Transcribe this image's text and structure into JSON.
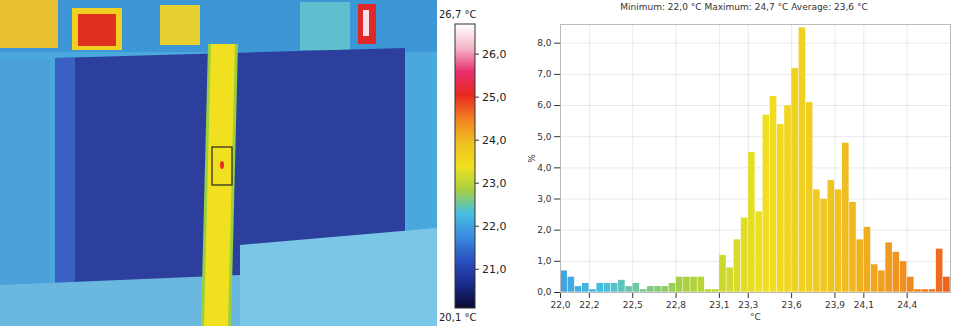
{
  "chart_data": {
    "type": "histogram",
    "title": "Minimum: 22,0 °C Maximum: 24,7 °C Average: 23,6 °C",
    "x_label": "°C",
    "y_label": "%",
    "bins": [
      22,
      22.05,
      22.1,
      22.15,
      22.2,
      22.25,
      22.3,
      22.35,
      22.4,
      22.45,
      22.5,
      22.55,
      22.6,
      22.65,
      22.7,
      22.75,
      22.8,
      22.85,
      22.9,
      22.95,
      23,
      23.05,
      23.1,
      23.15,
      23.2,
      23.25,
      23.3,
      23.35,
      23.4,
      23.45,
      23.5,
      23.55,
      23.6,
      23.65,
      23.7,
      23.75,
      23.8,
      23.85,
      23.9,
      23.95,
      24,
      24.05,
      24.1,
      24.15,
      24.2,
      24.25,
      24.3,
      24.35,
      24.4,
      24.45,
      24.5,
      24.55,
      24.6,
      24.65,
      24.7
    ],
    "counts": [
      0.7,
      0.5,
      0.2,
      0.3,
      0.1,
      0.3,
      0.3,
      0.3,
      0.4,
      0.2,
      0.3,
      0.1,
      0.2,
      0.2,
      0.2,
      0.3,
      0.5,
      0.5,
      0.5,
      0.5,
      0.1,
      0.1,
      1.2,
      0.8,
      1.7,
      2.4,
      4.5,
      2.6,
      5.7,
      6.3,
      5.4,
      6.0,
      7.2,
      8.5,
      6.1,
      3.3,
      3.0,
      3.6,
      3.3,
      4.8,
      2.9,
      1.7,
      2.1,
      0.9,
      0.7,
      1.6,
      1.3,
      1.0,
      0.5,
      0.1,
      0.1,
      0.1,
      1.4,
      0.5
    ],
    "xlim": [
      22.0,
      24.7
    ],
    "xticks": [
      {
        "value": 22.0,
        "label": "22,0"
      },
      {
        "value": 22.2,
        "label": "22,2"
      },
      {
        "value": 22.5,
        "label": "22,5"
      },
      {
        "value": 22.8,
        "label": "22,8"
      },
      {
        "value": 23.1,
        "label": "23,1"
      },
      {
        "value": 23.3,
        "label": "23,3"
      },
      {
        "value": 23.6,
        "label": "23,6"
      },
      {
        "value": 23.9,
        "label": "23,9"
      },
      {
        "value": 24.1,
        "label": "24,1"
      },
      {
        "value": 24.4,
        "label": "24,4"
      }
    ],
    "ylim": [
      0,
      8.6
    ],
    "yticks": [
      {
        "value": 0,
        "label": "0,0"
      },
      {
        "value": 1,
        "label": "1,0"
      },
      {
        "value": 2,
        "label": "2,0"
      },
      {
        "value": 3,
        "label": "3,0"
      },
      {
        "value": 4,
        "label": "4,0"
      },
      {
        "value": 5,
        "label": "5,0"
      },
      {
        "value": 6,
        "label": "6,0"
      },
      {
        "value": 7,
        "label": "7,0"
      },
      {
        "value": 8,
        "label": "8,0"
      }
    ],
    "grid": true,
    "colorbar": {
      "range": [
        20.1,
        26.7
      ],
      "range_labels": [
        "20,1 °C",
        "26,7 °C"
      ],
      "ticks": [
        {
          "value": 21,
          "label": "21,0"
        },
        {
          "value": 22,
          "label": "22,0"
        },
        {
          "value": 23,
          "label": "23,0"
        },
        {
          "value": 24,
          "label": "24,0"
        },
        {
          "value": 25,
          "label": "25,0"
        },
        {
          "value": 26,
          "label": "26,0"
        }
      ],
      "colors": [
        "#0a0a2e",
        "#1a2a8a",
        "#2a50c0",
        "#3a8ae0",
        "#45c0e0",
        "#a8d040",
        "#f0e020",
        "#f0c020",
        "#f08020",
        "#e82820",
        "#e83070",
        "#f4b8c8",
        "#ffffff"
      ]
    }
  }
}
